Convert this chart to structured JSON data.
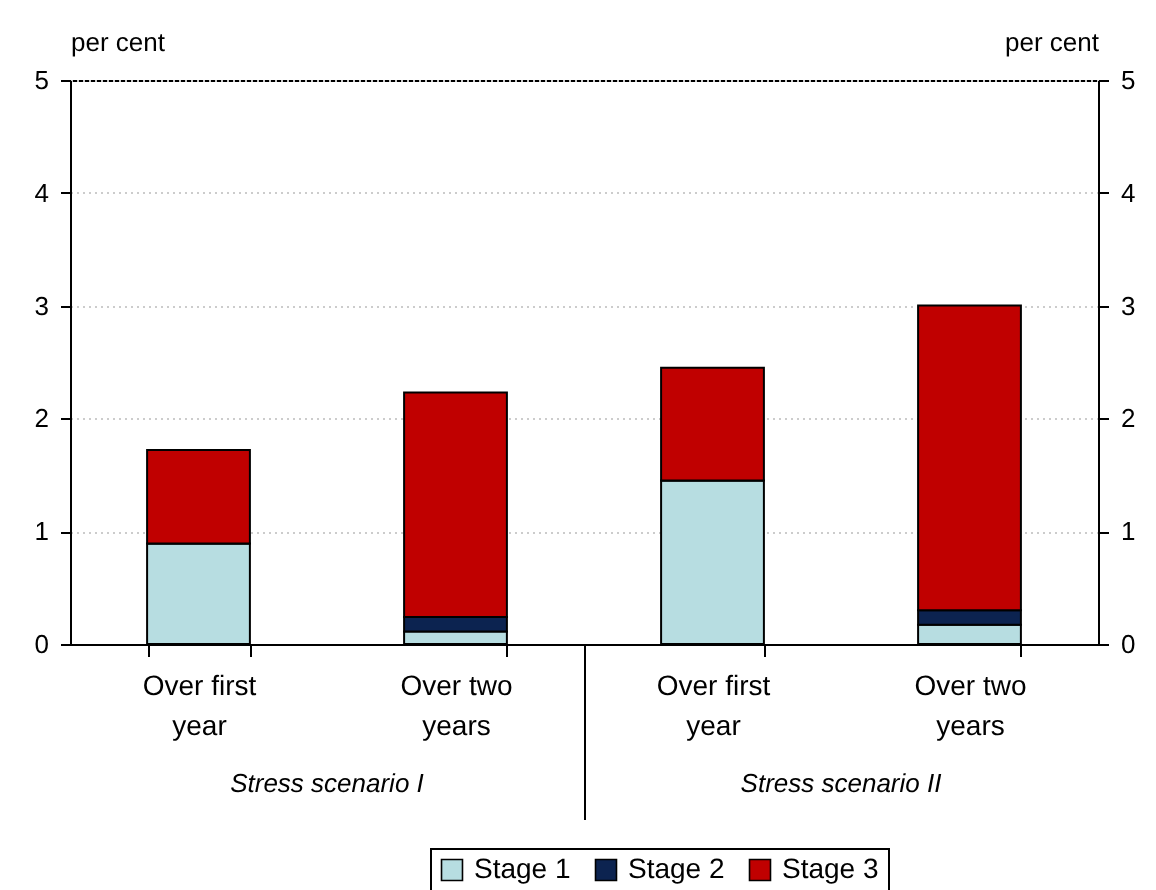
{
  "chart_data": {
    "type": "bar",
    "stacked": true,
    "categories": [
      "Over first year",
      "Over two years",
      "Over first year",
      "Over two years"
    ],
    "series": [
      {
        "name": "Stage 1",
        "color": "#b7dde1",
        "values": [
          0.89,
          0.11,
          1.45,
          0.17
        ]
      },
      {
        "name": "Stage 2",
        "color": "#0c2350",
        "values": [
          0,
          0.13,
          0,
          0.13
        ]
      },
      {
        "name": "Stage 3",
        "color": "#c00000",
        "values": [
          0.83,
          1.99,
          1.0,
          2.7
        ]
      }
    ],
    "ylabel": "per cent",
    "y2label": "per cent",
    "ylim": [
      0,
      5
    ],
    "yticks": [
      0,
      1,
      2,
      3,
      4,
      5
    ],
    "y2lim": [
      0,
      5
    ],
    "y2ticks": [
      0,
      1,
      2,
      3,
      4,
      5
    ],
    "grid": "y",
    "legend": "bottom",
    "annotations": [
      "Stress scenario I",
      "Stress scenario II"
    ]
  }
}
